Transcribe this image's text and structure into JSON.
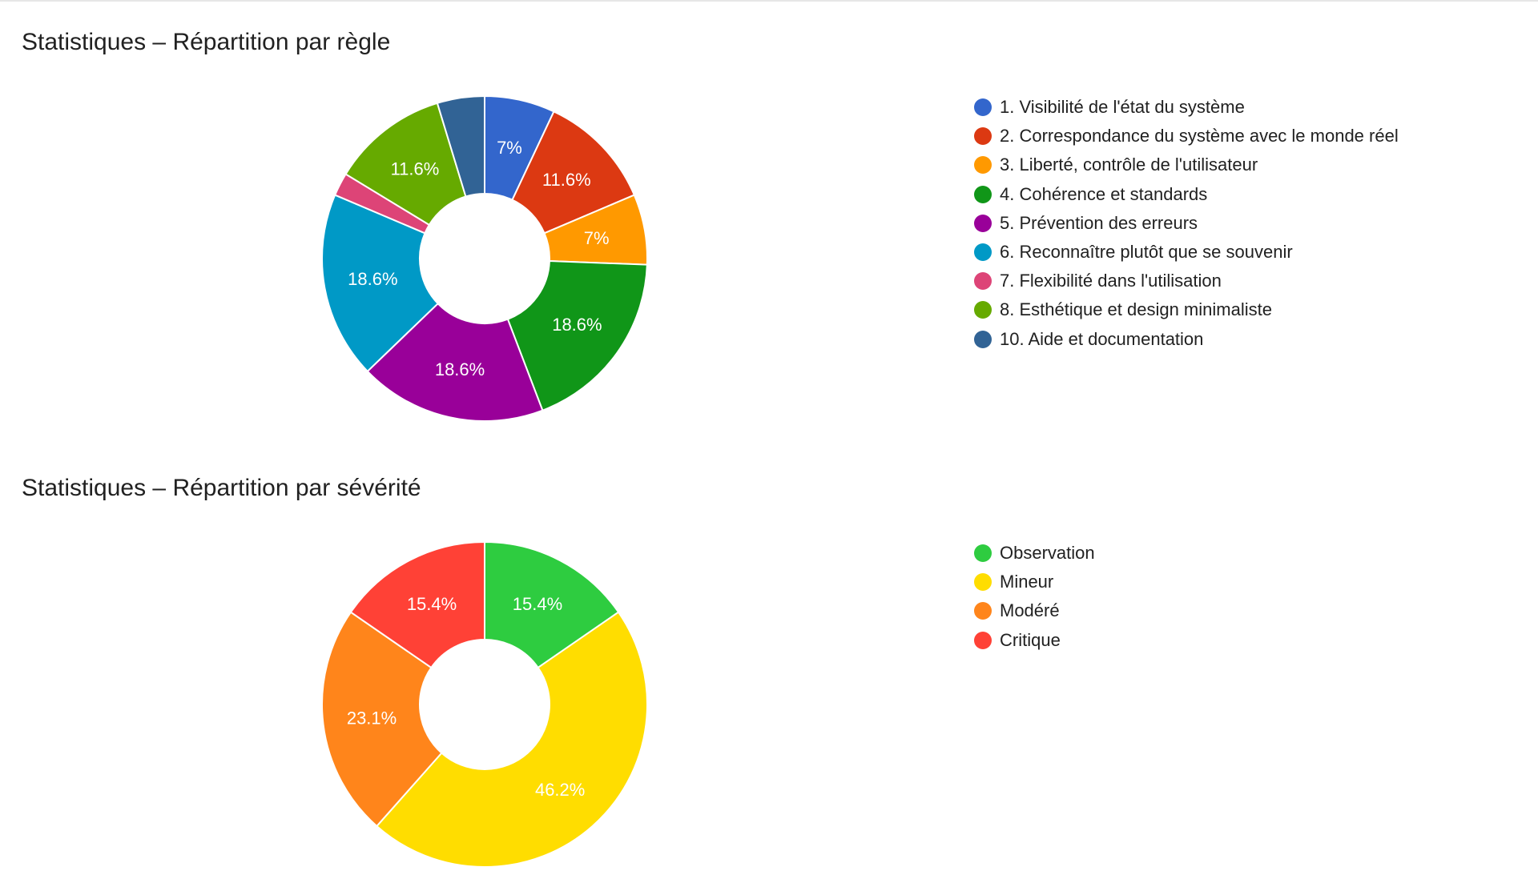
{
  "chart_data": [
    {
      "type": "pie",
      "donut": true,
      "title": "Statistiques – Répartition par règle",
      "legend_position": "right",
      "slices": [
        {
          "label": "1. Visibilité de l'état du système",
          "value": 7.0,
          "display": "7%",
          "color": "#3366cc"
        },
        {
          "label": "2. Correspondance du système avec le monde réel",
          "value": 11.6,
          "display": "11.6%",
          "color": "#dc3912"
        },
        {
          "label": "3. Liberté, contrôle de l'utilisateur",
          "value": 7.0,
          "display": "7%",
          "color": "#ff9900"
        },
        {
          "label": "4. Cohérence et standards",
          "value": 18.6,
          "display": "18.6%",
          "color": "#109618"
        },
        {
          "label": "5. Prévention des erreurs",
          "value": 18.6,
          "display": "18.6%",
          "color": "#990099"
        },
        {
          "label": "6. Reconnaître plutôt que se souvenir",
          "value": 18.6,
          "display": "18.6%",
          "color": "#0099c6"
        },
        {
          "label": "7. Flexibilité dans l'utilisation",
          "value": 2.3,
          "display": "",
          "color": "#dd4477"
        },
        {
          "label": "8. Esthétique et design minimaliste",
          "value": 11.6,
          "display": "11.6%",
          "color": "#66aa00"
        },
        {
          "label": "10. Aide et documentation",
          "value": 4.7,
          "display": "",
          "color": "#316395"
        }
      ]
    },
    {
      "type": "pie",
      "donut": true,
      "title": "Statistiques – Répartition par sévérité",
      "legend_position": "right",
      "slices": [
        {
          "label": "Observation",
          "value": 15.4,
          "display": "15.4%",
          "color": "#2ecc40"
        },
        {
          "label": "Mineur",
          "value": 46.2,
          "display": "46.2%",
          "color": "#ffdd00"
        },
        {
          "label": "Modéré",
          "value": 23.1,
          "display": "23.1%",
          "color": "#ff851b"
        },
        {
          "label": "Critique",
          "value": 15.4,
          "display": "15.4%",
          "color": "#ff4136"
        }
      ]
    }
  ]
}
